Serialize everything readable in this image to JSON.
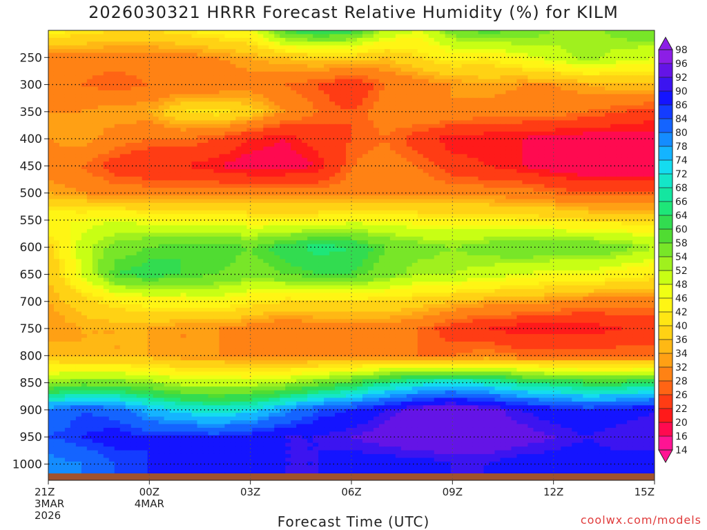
{
  "title": "2026030321 HRRR Forecast Relative Humidity (%) for KILM",
  "xlabel": "Forecast Time (UTC)",
  "credit": "coolwx.com/models",
  "chart_data": {
    "type": "heatmap",
    "title": "2026030321 HRRR Forecast Relative Humidity (%) for KILM",
    "xlabel": "Forecast Time (UTC)",
    "ylabel": "",
    "x_hours": [
      0,
      1,
      2,
      3,
      4,
      5,
      6,
      7,
      8,
      9,
      10,
      11,
      12,
      13,
      14,
      15,
      16,
      17,
      18
    ],
    "y_levels": [
      200,
      250,
      300,
      350,
      400,
      450,
      500,
      550,
      600,
      650,
      700,
      750,
      800,
      850,
      900,
      950,
      1000
    ],
    "rh": [
      [
        44,
        42,
        40,
        40,
        42,
        44,
        46,
        60,
        64,
        62,
        52,
        48,
        56,
        60,
        58,
        54,
        52,
        56,
        58
      ],
      [
        30,
        30,
        30,
        30,
        30,
        32,
        34,
        36,
        38,
        38,
        36,
        40,
        44,
        42,
        46,
        50,
        54,
        50,
        48
      ],
      [
        28,
        28,
        26,
        28,
        28,
        28,
        30,
        28,
        26,
        22,
        28,
        30,
        32,
        34,
        32,
        32,
        34,
        36,
        36
      ],
      [
        32,
        32,
        34,
        34,
        40,
        42,
        38,
        32,
        28,
        26,
        30,
        32,
        32,
        30,
        30,
        30,
        28,
        26,
        24
      ],
      [
        32,
        34,
        30,
        28,
        28,
        26,
        22,
        20,
        24,
        26,
        28,
        24,
        20,
        20,
        20,
        18,
        18,
        18,
        18
      ],
      [
        30,
        28,
        24,
        22,
        22,
        20,
        18,
        18,
        20,
        28,
        30,
        28,
        24,
        22,
        20,
        18,
        16,
        16,
        16
      ],
      [
        34,
        32,
        30,
        30,
        30,
        30,
        30,
        30,
        30,
        30,
        30,
        30,
        30,
        30,
        30,
        28,
        26,
        26,
        26
      ],
      [
        46,
        46,
        48,
        46,
        46,
        46,
        44,
        44,
        44,
        46,
        46,
        44,
        44,
        44,
        42,
        42,
        40,
        40,
        40
      ],
      [
        38,
        50,
        56,
        58,
        60,
        60,
        58,
        62,
        66,
        64,
        58,
        56,
        54,
        56,
        58,
        58,
        58,
        56,
        52
      ],
      [
        36,
        48,
        60,
        62,
        60,
        58,
        56,
        58,
        60,
        60,
        56,
        52,
        52,
        50,
        48,
        46,
        46,
        44,
        42
      ],
      [
        34,
        38,
        42,
        44,
        44,
        46,
        42,
        40,
        40,
        40,
        40,
        38,
        36,
        34,
        34,
        32,
        30,
        30,
        30
      ],
      [
        32,
        34,
        34,
        34,
        32,
        32,
        30,
        28,
        30,
        30,
        30,
        28,
        24,
        22,
        20,
        20,
        20,
        22,
        22
      ],
      [
        36,
        34,
        34,
        34,
        32,
        32,
        30,
        30,
        30,
        30,
        30,
        28,
        28,
        30,
        28,
        28,
        28,
        28,
        28
      ],
      [
        54,
        56,
        56,
        54,
        50,
        50,
        50,
        52,
        56,
        60,
        66,
        70,
        72,
        70,
        66,
        64,
        62,
        62,
        64
      ],
      [
        80,
        84,
        82,
        76,
        72,
        70,
        72,
        78,
        84,
        86,
        90,
        94,
        96,
        94,
        90,
        88,
        86,
        88,
        90
      ],
      [
        84,
        86,
        88,
        86,
        86,
        86,
        88,
        90,
        90,
        92,
        94,
        96,
        96,
        96,
        94,
        92,
        90,
        92,
        92
      ],
      [
        78,
        80,
        84,
        86,
        88,
        88,
        88,
        90,
        90,
        88,
        88,
        88,
        90,
        90,
        88,
        88,
        88,
        88,
        88
      ]
    ],
    "x_ticks": [
      {
        "hour": 0,
        "line1": "21Z",
        "line2": "3MAR",
        "line3": "2026"
      },
      {
        "hour": 3,
        "line1": "00Z",
        "line2": "4MAR",
        "line3": ""
      },
      {
        "hour": 6,
        "line1": "03Z",
        "line2": "",
        "line3": ""
      },
      {
        "hour": 9,
        "line1": "06Z",
        "line2": "",
        "line3": ""
      },
      {
        "hour": 12,
        "line1": "09Z",
        "line2": "",
        "line3": ""
      },
      {
        "hour": 15,
        "line1": "12Z",
        "line2": "",
        "line3": ""
      },
      {
        "hour": 18,
        "line1": "15Z",
        "line2": "",
        "line3": ""
      }
    ],
    "y_tick_labels": [
      "250",
      "300",
      "350",
      "400",
      "450",
      "500",
      "550",
      "600",
      "650",
      "700",
      "750",
      "800",
      "850",
      "900",
      "950",
      "1000"
    ],
    "y_range": [
      200,
      1030
    ],
    "colorbar": {
      "levels": [
        14,
        16,
        20,
        22,
        26,
        28,
        32,
        34,
        36,
        40,
        42,
        46,
        48,
        52,
        54,
        58,
        60,
        64,
        66,
        68,
        72,
        74,
        78,
        80,
        84,
        86,
        90,
        92,
        96,
        98
      ],
      "colors": [
        "#ff1493",
        "#ff0a50",
        "#ff1a1a",
        "#ff3c14",
        "#ff6414",
        "#ff8214",
        "#ffa014",
        "#ffb814",
        "#ffd214",
        "#ffe614",
        "#fff514",
        "#f0ff14",
        "#c8ff14",
        "#a0f01e",
        "#78e628",
        "#50dc32",
        "#32dc50",
        "#1ee678",
        "#14e6a0",
        "#14e6c8",
        "#14dcf0",
        "#14b4ff",
        "#148cff",
        "#1464ff",
        "#143cff",
        "#1414ff",
        "#3c14f0",
        "#6414e6",
        "#8c1ee6"
      ]
    },
    "grid": true,
    "ground_color": "#a0522d"
  }
}
